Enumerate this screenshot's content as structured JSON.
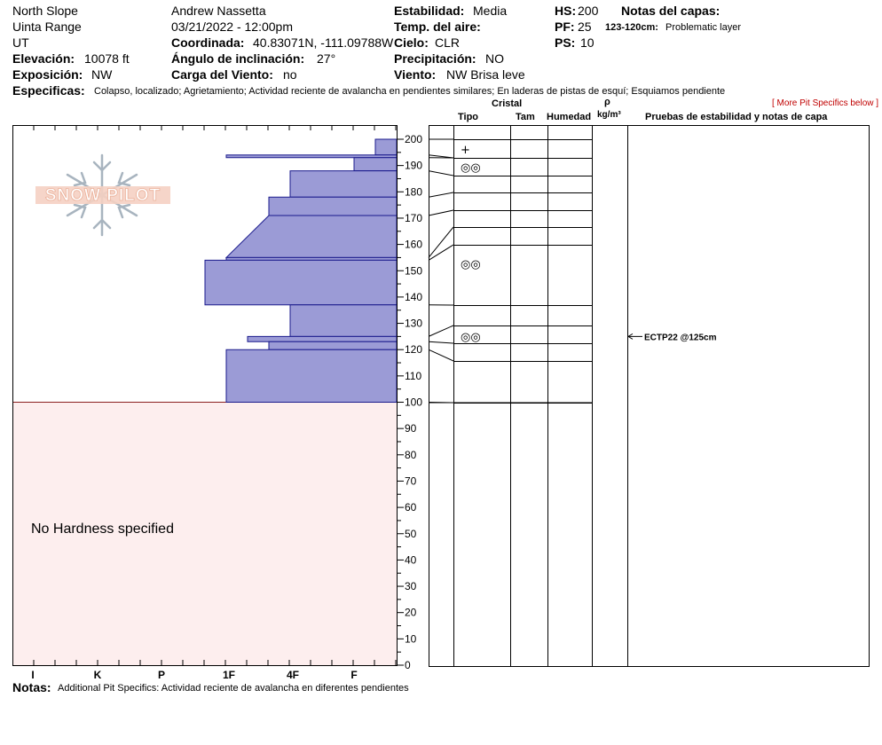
{
  "header": {
    "location": "North Slope",
    "range": "Uinta Range",
    "state": "UT",
    "elevation_label": "Elevación:",
    "elevation_value": "10078 ft",
    "aspect_label": "Exposición:",
    "aspect_value": "NW",
    "observer": "Andrew Nassetta",
    "datetime": "03/21/2022 - 12:00pm",
    "coord_label": "Coordinada:",
    "coord_value": "40.83071N, -111.09788W",
    "slope_label": "Ángulo de inclinación:",
    "slope_value": "27°",
    "wind_load_label": "Carga del Viento:",
    "wind_load_value": "no",
    "stability_label": "Estabilidad:",
    "stability_value": "Media",
    "air_temp_label": "Temp. del aire:",
    "sky_label": "Cielo:",
    "sky_value": "CLR",
    "precip_label": "Precipitación:",
    "precip_value": "NO",
    "wind_label": "Viento:",
    "wind_value": "NW Brisa leve",
    "hs_label": "HS:",
    "hs_value": "200",
    "pf_label": "PF:",
    "pf_value": "25",
    "ps_label": "PS:",
    "ps_value": "10",
    "layer_notes_label": "Notas del capas:",
    "layer_note_range": "123-120cm:",
    "layer_note_text": "Problematic layer",
    "specifics_label": "Especificas:",
    "specifics_value": "Colapso, localizado; Agrietamiento; Actividad reciente de avalancha en pendientes similares; En laderas de pistas de esquí; Esquiamos pendiente",
    "more_link": "[ More Pit Specifics below ]"
  },
  "columns": {
    "crystal": "Cristal",
    "type": "Tipo",
    "size": "Tam",
    "moisture": "Humedad",
    "rho": "ρ",
    "density_unit": "kg/m³",
    "tests": "Pruebas de estabilidad y notas de capa"
  },
  "logo_text": "SNOW PILOT",
  "no_hardness_text": "No Hardness specified",
  "notes_label": "Notas:",
  "notes_value": "Additional Pit Specifics: Actividad reciente de avalancha en diferentes pendientes",
  "colors": {
    "hardness_fill": "#9b9bd6",
    "hardness_stroke": "#1a1a8c",
    "no_hardness_fill": "#fdeeee",
    "no_hardness_line": "#8b2020",
    "more_link": "#c00000"
  },
  "chart_data": {
    "type": "bar",
    "title": "",
    "ylim": [
      0,
      200
    ],
    "y_ticks": [
      0,
      10,
      20,
      30,
      40,
      50,
      60,
      70,
      80,
      90,
      100,
      110,
      120,
      130,
      140,
      150,
      160,
      170,
      180,
      190,
      200
    ],
    "hardness_ticks": [
      "I",
      "K",
      "P",
      "1F",
      "4F",
      "F"
    ],
    "hardness_scale_note": "hardness index 0=F (right edge) increasing to the left",
    "layers": [
      {
        "top": 200,
        "bottom": 194,
        "hardness": "F"
      },
      {
        "top": 194,
        "bottom": 193,
        "hardness": "1F"
      },
      {
        "top": 193,
        "bottom": 188,
        "hardness": "F+"
      },
      {
        "top": 188,
        "bottom": 178,
        "hardness": "4F"
      },
      {
        "top": 178,
        "bottom": 171,
        "hardness": "4F+"
      },
      {
        "top": 171,
        "bottom": 155,
        "hardness": "4F+ to 1F"
      },
      {
        "top": 155,
        "bottom": 154,
        "hardness": "1F"
      },
      {
        "top": 154,
        "bottom": 137,
        "hardness": "1F+"
      },
      {
        "top": 137,
        "bottom": 125,
        "hardness": "4F"
      },
      {
        "top": 125,
        "bottom": 123,
        "hardness": "1F-"
      },
      {
        "top": 123,
        "bottom": 120,
        "hardness": "4F+"
      },
      {
        "top": 120,
        "bottom": 100,
        "hardness": "1F"
      }
    ],
    "layer_boundaries_cm": [
      200,
      194,
      193,
      188,
      178,
      171,
      155,
      154,
      137,
      125,
      123,
      120,
      100
    ],
    "crystals": [
      {
        "depth": 196,
        "symbol": "+"
      },
      {
        "depth": 190,
        "symbol": "◎◎"
      },
      {
        "depth": 154,
        "symbol": "◎◎"
      },
      {
        "depth": 126,
        "symbol": "◎◎"
      }
    ],
    "tests": [
      {
        "depth": 125,
        "text": "ECTP22 @125cm"
      }
    ]
  }
}
